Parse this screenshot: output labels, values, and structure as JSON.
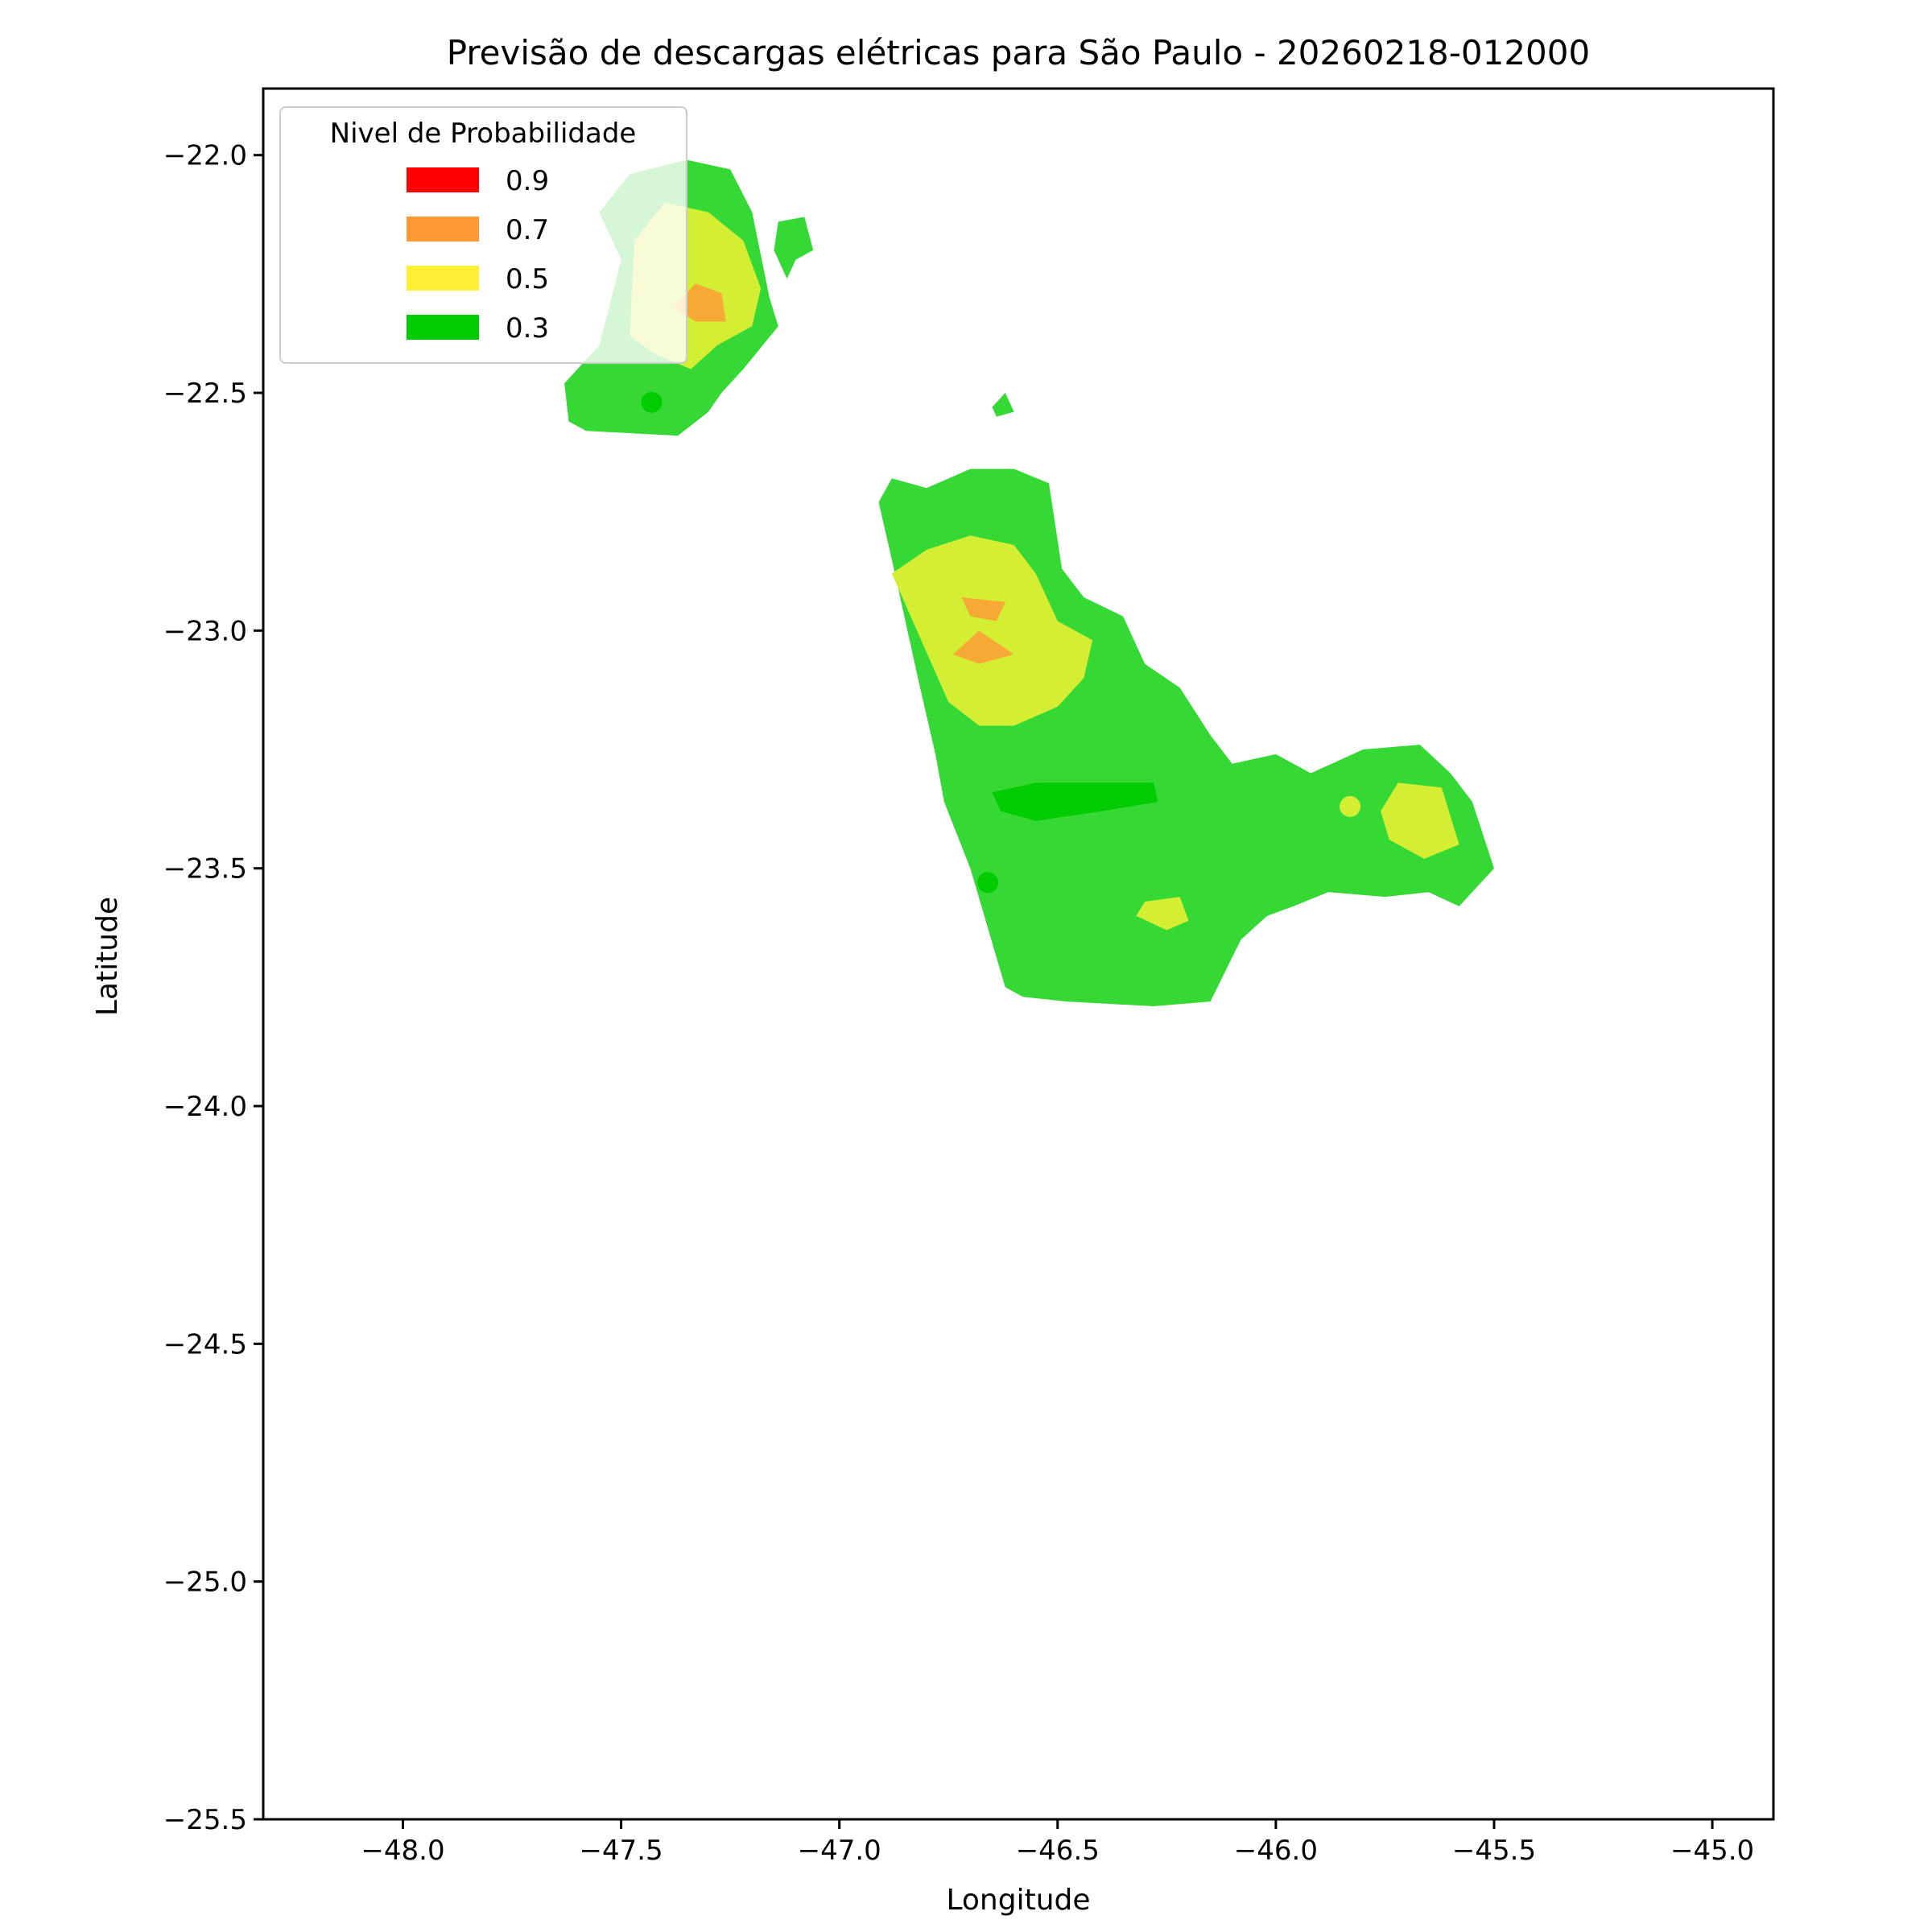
{
  "chart_data": {
    "type": "heatmap",
    "title": "Previsão de descargas elétricas para São Paulo - 20260218-012000",
    "xlabel": "Longitude",
    "ylabel": "Latitude",
    "xlim": [
      -48.32,
      -44.86
    ],
    "ylim": [
      -25.5,
      -21.86
    ],
    "xticks": [
      -48.0,
      -47.5,
      -47.0,
      -46.5,
      -46.0,
      -45.5,
      -45.0
    ],
    "xtick_labels": [
      "−48.0",
      "−47.5",
      "−47.0",
      "−46.5",
      "−46.0",
      "−45.5",
      "−45.0"
    ],
    "yticks": [
      -22.0,
      -22.5,
      -23.0,
      -23.5,
      -24.0,
      -24.5,
      -25.0,
      -25.5
    ],
    "ytick_labels": [
      "−22.0",
      "−22.5",
      "−23.0",
      "−23.5",
      "−24.0",
      "−24.5",
      "−25.0",
      "−25.5"
    ],
    "grid": false,
    "legend": {
      "title": "Nivel de Probabilidade",
      "placement": "upper-left",
      "entries": [
        {
          "label": "0.9",
          "color": "#ff0000"
        },
        {
          "label": "0.7",
          "color": "#ff9933"
        },
        {
          "label": "0.5",
          "color": "#ffee33"
        },
        {
          "label": "0.3",
          "color": "#00cc00"
        }
      ]
    },
    "regions": [
      {
        "level": 0.3,
        "color": "#35d835",
        "polygon": [
          [
            -47.63,
            -22.48
          ],
          [
            -47.55,
            -22.4
          ],
          [
            -47.5,
            -22.22
          ],
          [
            -47.55,
            -22.12
          ],
          [
            -47.48,
            -22.04
          ],
          [
            -47.35,
            -22.01
          ],
          [
            -47.25,
            -22.03
          ],
          [
            -47.2,
            -22.12
          ],
          [
            -47.16,
            -22.3
          ],
          [
            -47.14,
            -22.36
          ],
          [
            -47.22,
            -22.45
          ],
          [
            -47.27,
            -22.5
          ],
          [
            -47.3,
            -22.54
          ],
          [
            -47.37,
            -22.59
          ],
          [
            -47.58,
            -22.58
          ],
          [
            -47.62,
            -22.56
          ]
        ]
      },
      {
        "level": 0.5,
        "color": "#d4ee33",
        "polygon": [
          [
            -47.42,
            -22.42
          ],
          [
            -47.48,
            -22.38
          ],
          [
            -47.47,
            -22.18
          ],
          [
            -47.4,
            -22.1
          ],
          [
            -47.3,
            -22.12
          ],
          [
            -47.22,
            -22.18
          ],
          [
            -47.18,
            -22.28
          ],
          [
            -47.2,
            -22.36
          ],
          [
            -47.28,
            -22.4
          ],
          [
            -47.34,
            -22.45
          ]
        ]
      },
      {
        "level": 0.7,
        "color": "#f7a935",
        "polygon": [
          [
            -47.38,
            -22.32
          ],
          [
            -47.33,
            -22.27
          ],
          [
            -47.27,
            -22.29
          ],
          [
            -47.26,
            -22.35
          ],
          [
            -47.33,
            -22.35
          ]
        ]
      },
      {
        "level": 0.3,
        "color": "#35d835",
        "polygon": [
          [
            -47.14,
            -22.14
          ],
          [
            -47.08,
            -22.13
          ],
          [
            -47.06,
            -22.2
          ],
          [
            -47.1,
            -22.22
          ],
          [
            -47.12,
            -22.26
          ],
          [
            -47.15,
            -22.2
          ]
        ]
      },
      {
        "level": 0.3,
        "color": "#35d835",
        "polygon": [
          [
            -46.65,
            -22.53
          ],
          [
            -46.62,
            -22.5
          ],
          [
            -46.6,
            -22.54
          ],
          [
            -46.64,
            -22.55
          ]
        ]
      },
      {
        "level": 0.3,
        "color": "#35d835",
        "polygon": [
          [
            -46.62,
            -23.75
          ],
          [
            -46.7,
            -23.5
          ],
          [
            -46.76,
            -23.36
          ],
          [
            -46.78,
            -23.26
          ],
          [
            -46.82,
            -23.1
          ],
          [
            -46.88,
            -22.85
          ],
          [
            -46.91,
            -22.73
          ],
          [
            -46.88,
            -22.68
          ],
          [
            -46.8,
            -22.7
          ],
          [
            -46.7,
            -22.66
          ],
          [
            -46.6,
            -22.66
          ],
          [
            -46.52,
            -22.69
          ],
          [
            -46.49,
            -22.87
          ],
          [
            -46.44,
            -22.93
          ],
          [
            -46.35,
            -22.97
          ],
          [
            -46.3,
            -23.07
          ],
          [
            -46.22,
            -23.12
          ],
          [
            -46.15,
            -23.22
          ],
          [
            -46.1,
            -23.28
          ],
          [
            -46.0,
            -23.26
          ],
          [
            -45.92,
            -23.3
          ],
          [
            -45.8,
            -23.25
          ],
          [
            -45.67,
            -23.24
          ],
          [
            -45.6,
            -23.3
          ],
          [
            -45.55,
            -23.36
          ],
          [
            -45.5,
            -23.5
          ],
          [
            -45.58,
            -23.58
          ],
          [
            -45.65,
            -23.55
          ],
          [
            -45.75,
            -23.56
          ],
          [
            -45.88,
            -23.55
          ],
          [
            -45.96,
            -23.58
          ],
          [
            -46.02,
            -23.6
          ],
          [
            -46.08,
            -23.65
          ],
          [
            -46.15,
            -23.78
          ],
          [
            -46.28,
            -23.79
          ],
          [
            -46.48,
            -23.78
          ],
          [
            -46.58,
            -23.77
          ]
        ]
      },
      {
        "level": 0.5,
        "color": "#d4ee33",
        "polygon": [
          [
            -46.75,
            -23.15
          ],
          [
            -46.88,
            -22.88
          ],
          [
            -46.8,
            -22.83
          ],
          [
            -46.7,
            -22.8
          ],
          [
            -46.6,
            -22.82
          ],
          [
            -46.55,
            -22.88
          ],
          [
            -46.5,
            -22.98
          ],
          [
            -46.42,
            -23.02
          ],
          [
            -46.44,
            -23.1
          ],
          [
            -46.5,
            -23.16
          ],
          [
            -46.6,
            -23.2
          ],
          [
            -46.68,
            -23.2
          ]
        ]
      },
      {
        "level": 0.7,
        "color": "#f7a935",
        "polygon": [
          [
            -46.74,
            -23.05
          ],
          [
            -46.68,
            -23.0
          ],
          [
            -46.6,
            -23.05
          ],
          [
            -46.68,
            -23.07
          ]
        ]
      },
      {
        "level": 0.7,
        "color": "#f7a935",
        "polygon": [
          [
            -46.72,
            -22.93
          ],
          [
            -46.62,
            -22.94
          ],
          [
            -46.64,
            -22.98
          ],
          [
            -46.7,
            -22.97
          ]
        ]
      },
      {
        "level": 0.3,
        "color": "#00cc00",
        "polygon": [
          [
            -46.63,
            -23.38
          ],
          [
            -46.55,
            -23.4
          ],
          [
            -46.4,
            -23.38
          ],
          [
            -46.27,
            -23.36
          ],
          [
            -46.28,
            -23.32
          ],
          [
            -46.4,
            -23.32
          ],
          [
            -46.55,
            -23.32
          ],
          [
            -46.65,
            -23.34
          ]
        ]
      },
      {
        "level": 0.5,
        "color": "#d4ee33",
        "polygon": [
          [
            -45.72,
            -23.32
          ],
          [
            -45.62,
            -23.33
          ],
          [
            -45.58,
            -23.45
          ],
          [
            -45.66,
            -23.48
          ],
          [
            -45.74,
            -23.44
          ],
          [
            -45.76,
            -23.38
          ]
        ]
      },
      {
        "level": 0.5,
        "color": "#d4ee33",
        "polygon": [
          [
            -46.3,
            -23.57
          ],
          [
            -46.22,
            -23.56
          ],
          [
            -46.2,
            -23.61
          ],
          [
            -46.25,
            -23.63
          ],
          [
            -46.32,
            -23.6
          ]
        ]
      }
    ],
    "markers": [
      {
        "lon": -47.43,
        "lat": -22.52,
        "color": "#00cc00"
      },
      {
        "lon": -46.66,
        "lat": -23.53,
        "color": "#00cc00"
      },
      {
        "lon": -45.83,
        "lat": -23.37,
        "color": "#d4ee33"
      }
    ]
  }
}
